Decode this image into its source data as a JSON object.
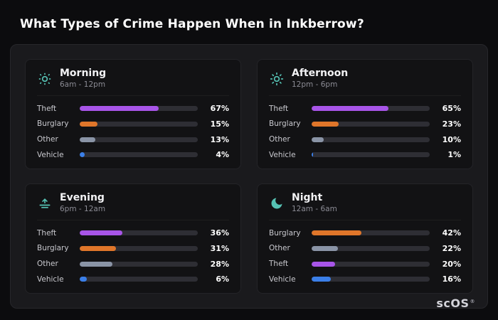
{
  "page": {
    "title": "What Types of Crime Happen When in Inkberrow?",
    "brand": "scOS",
    "brand_registered": "®"
  },
  "colors": {
    "theft": "#a855e8",
    "burglary": "#e0762a",
    "other": "#8a94a6",
    "vehicle": "#3b7fe8",
    "icon_accent": "#56c2b4",
    "bar_track": "#2e2e34"
  },
  "chart_data": [
    {
      "type": "bar",
      "orientation": "horizontal",
      "title": "Morning",
      "subtitle": "6am - 12pm",
      "icon": "sun-dim-icon",
      "categories": [
        "Theft",
        "Burglary",
        "Other",
        "Vehicle"
      ],
      "values": [
        67,
        15,
        13,
        4
      ],
      "value_labels": [
        "67%",
        "15%",
        "13%",
        "4%"
      ],
      "colors": [
        "#a855e8",
        "#e0762a",
        "#8a94a6",
        "#3b7fe8"
      ],
      "xlim": [
        0,
        100
      ]
    },
    {
      "type": "bar",
      "orientation": "horizontal",
      "title": "Afternoon",
      "subtitle": "12pm - 6pm",
      "icon": "sun-icon",
      "categories": [
        "Theft",
        "Burglary",
        "Other",
        "Vehicle"
      ],
      "values": [
        65,
        23,
        10,
        1
      ],
      "value_labels": [
        "65%",
        "23%",
        "10%",
        "1%"
      ],
      "colors": [
        "#a855e8",
        "#e0762a",
        "#8a94a6",
        "#3b7fe8"
      ],
      "xlim": [
        0,
        100
      ]
    },
    {
      "type": "bar",
      "orientation": "horizontal",
      "title": "Evening",
      "subtitle": "6pm - 12am",
      "icon": "sunset-icon",
      "categories": [
        "Theft",
        "Burglary",
        "Other",
        "Vehicle"
      ],
      "values": [
        36,
        31,
        28,
        6
      ],
      "value_labels": [
        "36%",
        "31%",
        "28%",
        "6%"
      ],
      "colors": [
        "#a855e8",
        "#e0762a",
        "#8a94a6",
        "#3b7fe8"
      ],
      "xlim": [
        0,
        100
      ]
    },
    {
      "type": "bar",
      "orientation": "horizontal",
      "title": "Night",
      "subtitle": "12am - 6am",
      "icon": "moon-icon",
      "categories": [
        "Burglary",
        "Other",
        "Theft",
        "Vehicle"
      ],
      "values": [
        42,
        22,
        20,
        16
      ],
      "value_labels": [
        "42%",
        "22%",
        "20%",
        "16%"
      ],
      "colors": [
        "#e0762a",
        "#8a94a6",
        "#a855e8",
        "#3b7fe8"
      ],
      "xlim": [
        0,
        100
      ]
    }
  ]
}
